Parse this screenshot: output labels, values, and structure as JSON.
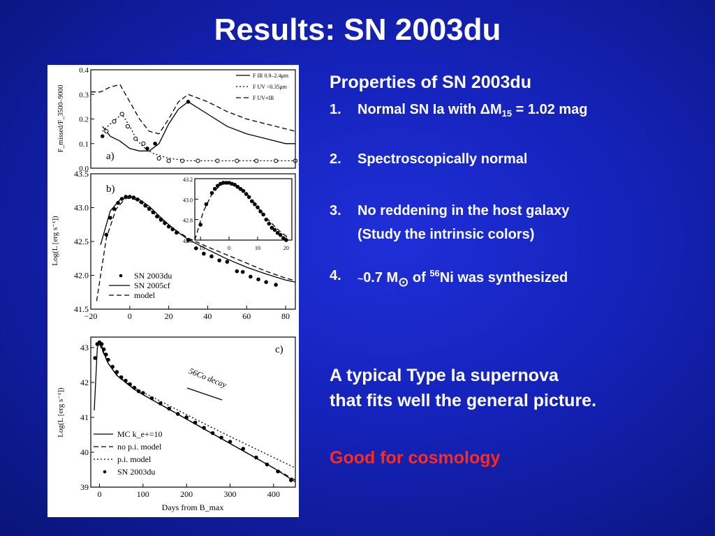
{
  "slide": {
    "title": "Results: SN 2003du",
    "properties_heading": "Properties of SN 2003du",
    "items": [
      {
        "num": "1.",
        "text": "Normal SN Ia with ΔM",
        "sub": "15",
        "tail": " = 1.02 mag"
      },
      {
        "num": "2.",
        "text": "Spectroscopically normal"
      },
      {
        "num": "3.",
        "text": "No reddening in the host galaxy",
        "line2": "(Study the intrinsic colors)"
      },
      {
        "num": "4.",
        "tilde": "~",
        "text": "0.7 M",
        "sun": "⊙",
        "mid": " of ",
        "sup": "56",
        "tail": "Ni was synthesized"
      }
    ],
    "summary_line1": "A typical Type Ia supernova",
    "summary_line2": "that fits well the general picture.",
    "highlight": "Good for cosmology",
    "highlight_color": "#ff2a1a"
  },
  "chart_data": [
    {
      "type": "line",
      "panel_label": "a)",
      "ylabel": "F_missed/F_3500–9000",
      "ylim": [
        0.0,
        0.4
      ],
      "yticks": [
        "0.0",
        "0.1",
        "0.2",
        "0.3",
        "0.4"
      ],
      "xlim": [
        -20,
        85
      ],
      "legend": [
        "F IR 0.9–2.4μm",
        "F UV <0.35μm",
        "F UV+IR"
      ],
      "series": [
        {
          "name": "F IR 0.9–2.4μm",
          "style": "solid",
          "x": [
            -14,
            -10,
            -5,
            0,
            5,
            10,
            15,
            20,
            25,
            30,
            40,
            50,
            60,
            70,
            80,
            85
          ],
          "y": [
            0.17,
            0.13,
            0.11,
            0.08,
            0.07,
            0.07,
            0.1,
            0.18,
            0.24,
            0.27,
            0.22,
            0.17,
            0.14,
            0.12,
            0.1,
            0.1
          ]
        },
        {
          "name": "F UV <0.35μm",
          "style": "dotted",
          "x": [
            -14,
            -10,
            -7,
            -4,
            0,
            4,
            8,
            12,
            20,
            30,
            40,
            50,
            60,
            70,
            80,
            85
          ],
          "y": [
            0.15,
            0.18,
            0.2,
            0.22,
            0.17,
            0.11,
            0.08,
            0.06,
            0.04,
            0.03,
            0.03,
            0.03,
            0.03,
            0.03,
            0.03,
            0.03
          ]
        },
        {
          "name": "F UV+IR",
          "style": "dashed",
          "x": [
            -20,
            -15,
            -10,
            -5,
            0,
            5,
            10,
            15,
            20,
            25,
            30,
            40,
            50,
            60,
            70,
            80,
            85
          ],
          "y": [
            0.31,
            0.31,
            0.33,
            0.34,
            0.27,
            0.2,
            0.15,
            0.14,
            0.2,
            0.27,
            0.3,
            0.27,
            0.23,
            0.2,
            0.18,
            0.16,
            0.15
          ]
        }
      ],
      "points": [
        {
          "name": "IR data",
          "marker": "filled",
          "x": [
            -14,
            9,
            13,
            30
          ],
          "y": [
            0.13,
            0.08,
            0.1,
            0.27
          ]
        },
        {
          "name": "UV data",
          "marker": "open",
          "x": [
            -12,
            -8,
            -4,
            -1,
            3,
            7,
            15,
            20,
            27,
            35,
            45,
            55,
            65,
            75,
            85
          ],
          "y": [
            0.15,
            0.19,
            0.22,
            0.17,
            0.12,
            0.1,
            0.04,
            0.03,
            0.03,
            0.03,
            0.03,
            0.03,
            0.03,
            0.03,
            0.03
          ]
        }
      ]
    },
    {
      "type": "line",
      "panel_label": "b)",
      "ylabel": "Log(L [erg s⁻¹])",
      "xlim": [
        -20,
        85
      ],
      "xticks": [
        "−20",
        "0",
        "20",
        "40",
        "60",
        "80"
      ],
      "ylim": [
        41.5,
        43.5
      ],
      "yticks": [
        "41.5",
        "42.0",
        "42.5",
        "43.0",
        "43.5"
      ],
      "legend": [
        "SN 2003du",
        "SN 2005cf",
        "model"
      ],
      "series": [
        {
          "name": "SN 2005cf",
          "style": "solid",
          "x": [
            -15,
            -10,
            -5,
            0,
            5,
            10,
            15,
            20,
            25,
            30,
            40,
            50,
            60,
            70,
            80,
            85
          ],
          "y": [
            42.45,
            42.95,
            43.12,
            43.17,
            43.12,
            43.02,
            42.88,
            42.75,
            42.63,
            42.53,
            42.38,
            42.24,
            42.12,
            42.02,
            41.93,
            41.9
          ]
        },
        {
          "name": "model",
          "style": "dashed",
          "x": [
            -17,
            -12,
            -7,
            -2,
            3,
            8,
            13,
            18,
            25,
            30,
            40,
            50,
            60,
            70,
            80,
            85
          ],
          "y": [
            41.62,
            42.55,
            42.98,
            43.14,
            43.12,
            43.03,
            42.9,
            42.78,
            42.64,
            42.55,
            42.42,
            42.3,
            42.18,
            42.06,
            41.96,
            41.92
          ]
        }
      ],
      "points": [
        {
          "name": "SN 2003du",
          "marker": "filled",
          "x": [
            -12,
            -10,
            -8,
            -6,
            -4,
            -2,
            0,
            2,
            4,
            6,
            8,
            10,
            12,
            14,
            16,
            18,
            20,
            22,
            24,
            30,
            34,
            38,
            42,
            46,
            50,
            55,
            58,
            62,
            66,
            70,
            75
          ],
          "y": [
            42.6,
            42.85,
            42.98,
            43.07,
            43.13,
            43.16,
            43.16,
            43.15,
            43.12,
            43.08,
            43.03,
            42.98,
            42.93,
            42.87,
            42.82,
            42.77,
            42.72,
            42.68,
            42.63,
            42.52,
            42.4,
            42.32,
            42.28,
            42.22,
            42.2,
            42.06,
            42.05,
            41.98,
            41.94,
            41.9,
            41.86
          ]
        }
      ],
      "inset": {
        "xlim": [
          -12,
          22
        ],
        "xticks": [
          "−10",
          "0",
          "10",
          "20"
        ],
        "ylim": [
          42.6,
          43.2
        ],
        "yticks": [
          "42.6",
          "42.8",
          "43.0",
          "43.2"
        ],
        "model_x": [
          -12,
          -9,
          -6,
          -3,
          0,
          3,
          6,
          9,
          12,
          15,
          18,
          21
        ],
        "model_y": [
          42.6,
          42.88,
          43.05,
          43.14,
          43.16,
          43.13,
          43.06,
          42.96,
          42.85,
          42.76,
          42.68,
          42.62
        ],
        "data_x": [
          -10,
          -8,
          -6,
          -5,
          -4,
          -3,
          -2,
          -1,
          0,
          1,
          2,
          3,
          4,
          5,
          6,
          7,
          8,
          9,
          10,
          11,
          12,
          13,
          14,
          15,
          16,
          17,
          18,
          19,
          20
        ],
        "data_y": [
          42.75,
          42.95,
          43.06,
          43.1,
          43.13,
          43.15,
          43.16,
          43.16,
          43.16,
          43.15,
          43.14,
          43.12,
          43.1,
          43.08,
          43.05,
          43.02,
          42.98,
          42.95,
          42.92,
          42.88,
          42.85,
          42.8,
          42.76,
          42.72,
          42.7,
          42.67,
          42.65,
          42.62,
          42.6
        ]
      }
    },
    {
      "type": "line",
      "panel_label": "c)",
      "ylabel": "Log(L [erg s⁻¹])",
      "xlabel": "Days from B_max",
      "xlim": [
        -20,
        450
      ],
      "xticks": [
        "0",
        "100",
        "200",
        "300",
        "400"
      ],
      "ylim": [
        39,
        43.3
      ],
      "yticks": [
        "39",
        "40",
        "41",
        "42",
        "43"
      ],
      "annotation": "56Co decay",
      "legend": [
        "MC k_e+=10",
        "no p.i. model",
        "p.i. model",
        "SN 2003du"
      ],
      "series": [
        {
          "name": "MC k_e+=10",
          "style": "solid",
          "x": [
            -12,
            -5,
            0,
            5,
            10,
            20,
            40,
            60,
            80,
            100,
            150,
            200,
            250,
            300,
            350,
            400,
            450
          ],
          "y": [
            41.2,
            43.0,
            43.15,
            43.05,
            42.85,
            42.55,
            42.2,
            42.0,
            41.8,
            41.65,
            41.3,
            40.95,
            40.6,
            40.25,
            39.9,
            39.55,
            39.15
          ]
        },
        {
          "name": "no p.i. model",
          "style": "dashed",
          "x": [
            0,
            20,
            40,
            60,
            80,
            100,
            150,
            200,
            250,
            300,
            350,
            400,
            450
          ],
          "y": [
            43.1,
            42.55,
            42.2,
            42.0,
            41.8,
            41.65,
            41.3,
            40.95,
            40.6,
            40.25,
            39.9,
            39.55,
            39.2
          ]
        },
        {
          "name": "p.i. model",
          "style": "dotted",
          "x": [
            0,
            20,
            40,
            60,
            80,
            100,
            150,
            200,
            250,
            300,
            350,
            400,
            450
          ],
          "y": [
            43.1,
            42.55,
            42.22,
            42.02,
            41.85,
            41.72,
            41.4,
            41.08,
            40.76,
            40.45,
            40.15,
            39.85,
            39.55
          ]
        }
      ],
      "points": [
        {
          "name": "SN 2003du",
          "marker": "filled",
          "x": [
            -10,
            -5,
            0,
            5,
            10,
            15,
            20,
            30,
            40,
            50,
            60,
            70,
            80,
            90,
            100,
            120,
            140,
            160,
            180,
            200,
            220,
            240,
            260,
            280,
            300,
            330,
            360,
            385,
            410,
            440
          ],
          "y": [
            42.7,
            43.1,
            43.15,
            43.1,
            42.95,
            42.8,
            42.65,
            42.45,
            42.3,
            42.15,
            42.05,
            41.95,
            41.85,
            41.75,
            41.7,
            41.55,
            41.4,
            41.25,
            41.1,
            41.0,
            40.85,
            40.7,
            40.55,
            40.42,
            40.3,
            40.1,
            39.85,
            39.65,
            39.45,
            39.2
          ]
        }
      ]
    }
  ]
}
